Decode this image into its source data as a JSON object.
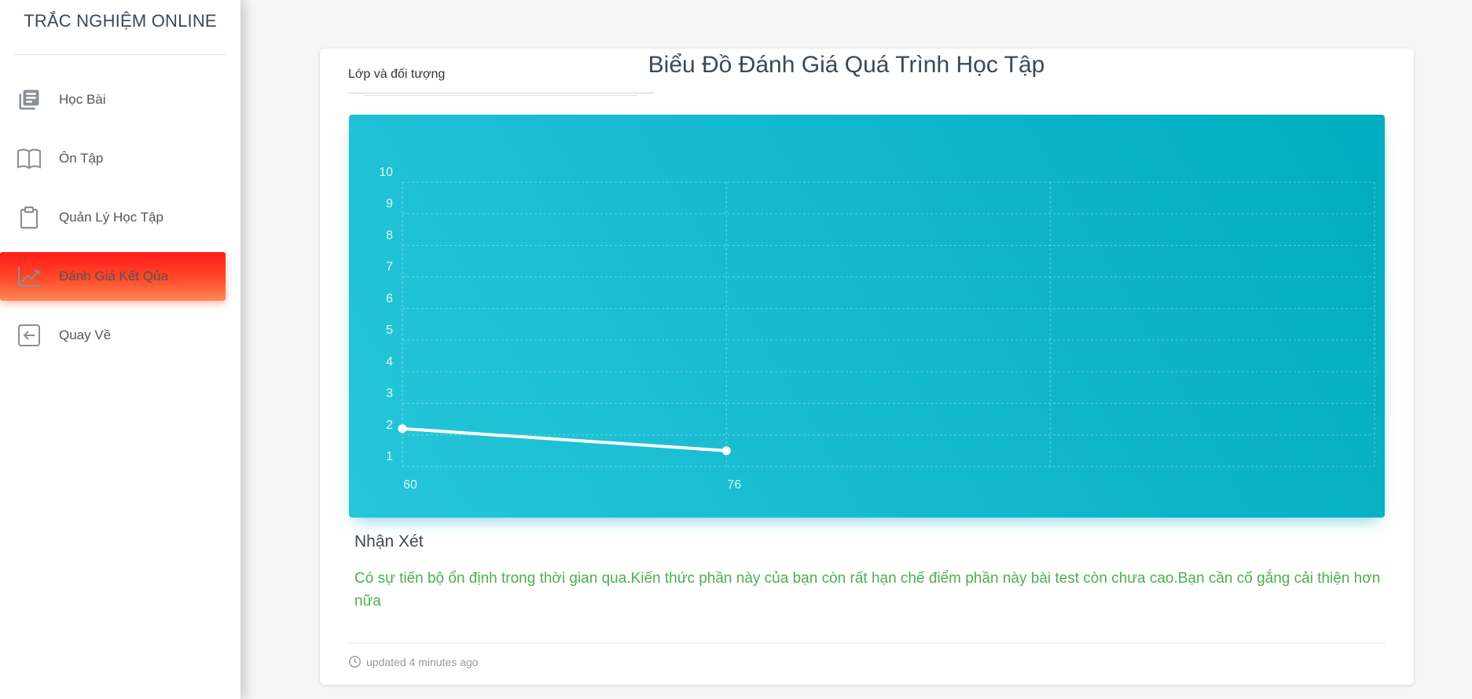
{
  "brand": {
    "title": "TRẮC NGHIỆM ONLINE"
  },
  "sidebar": {
    "items": [
      {
        "label": "Học Bài",
        "icon": "library-books-icon",
        "active": false
      },
      {
        "label": "Ôn Tập",
        "icon": "open-book-icon",
        "active": false
      },
      {
        "label": "Quản Lý Học Tập",
        "icon": "clipboard-icon",
        "active": false
      },
      {
        "label": "Đánh Giá Kết Qủa",
        "icon": "trending-up-icon",
        "active": true
      },
      {
        "label": "Quay Về",
        "icon": "arrow-back-box-icon",
        "active": false
      }
    ],
    "active_gradient": [
      "#ff1a1a",
      "#ff8a55"
    ]
  },
  "card": {
    "select_label": "Lớp và đối tượng",
    "title": "Biểu Đồ Đánh Giá Quá Trình Học Tập",
    "review_title": "Nhận Xét",
    "review_text": "Có sự tiến bộ ổn định trong thời gian qua.Kiến thức phần này của bạn còn rất hạn chế điểm phần này bài test còn chưa cao.Bạn cần cố gắng cải thiện hơn nữa",
    "review_color": "#4caf50",
    "updated": "updated 4 minutes ago"
  },
  "chart_data": {
    "type": "line",
    "categories": [
      "60",
      "76"
    ],
    "x_slots": 3,
    "series": [
      {
        "values": [
          2.2,
          1.5
        ]
      }
    ],
    "yticks": [
      1,
      2,
      3,
      4,
      5,
      6,
      7,
      8,
      9,
      10
    ],
    "ylim": [
      1,
      10
    ],
    "grid": true,
    "background": [
      "#26c6da",
      "#00acc1"
    ],
    "line_color": "#ffffff"
  }
}
